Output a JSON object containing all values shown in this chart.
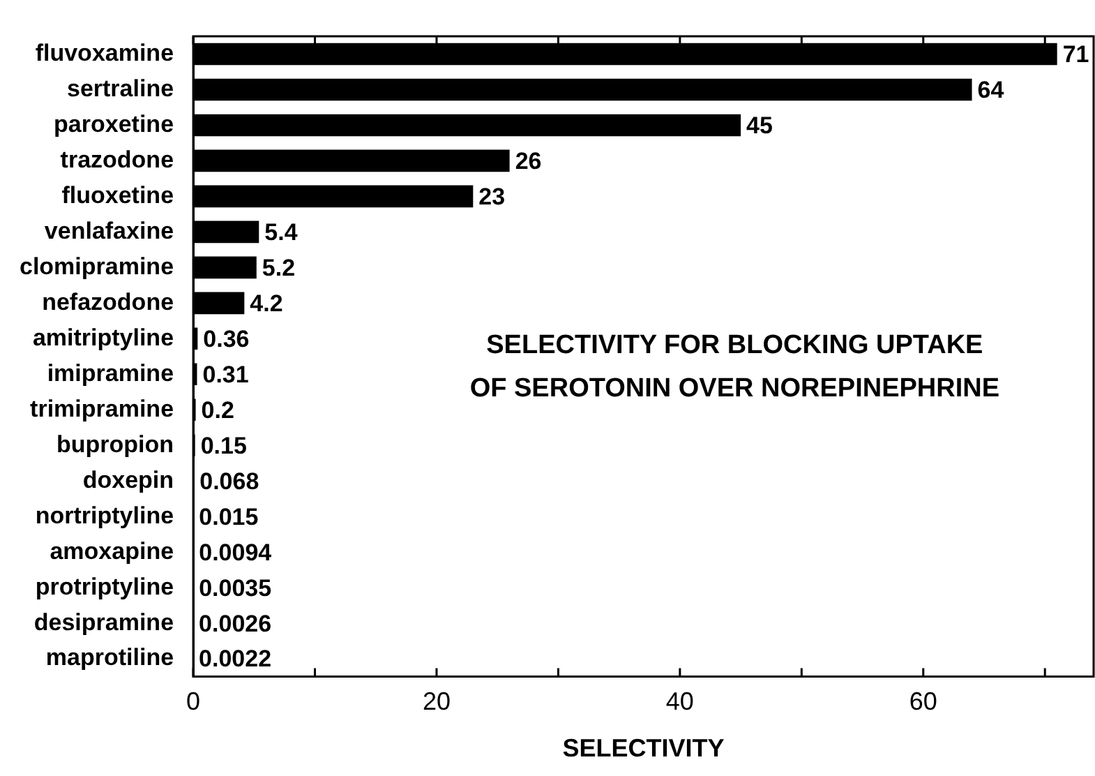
{
  "chart_data": {
    "type": "bar",
    "orientation": "horizontal",
    "title": "SELECTIVITY FOR BLOCKING UPTAKE\nOF SEROTONIN OVER NOREPINEPHRINE",
    "xlabel": "SELECTIVITY",
    "categories": [
      "fluvoxamine",
      "sertraline",
      "paroxetine",
      "trazodone",
      "fluoxetine",
      "venlafaxine",
      "clomipramine",
      "nefazodone",
      "amitriptyline",
      "imipramine",
      "trimipramine",
      "bupropion",
      "doxepin",
      "nortriptyline",
      "amoxapine",
      "protriptyline",
      "desipramine",
      "maprotiline"
    ],
    "values": [
      71,
      64,
      45,
      26,
      23,
      5.4,
      5.2,
      4.2,
      0.36,
      0.31,
      0.2,
      0.15,
      0.068,
      0.015,
      0.0094,
      0.0035,
      0.0026,
      0.0022
    ],
    "color": "#000000",
    "data_labels": true,
    "grid": false,
    "legend": false,
    "xlim": [
      0,
      74
    ],
    "xticks": [
      0,
      {
        "value": 10,
        "label": null
      },
      20,
      {
        "value": 30,
        "label": null
      },
      40,
      {
        "value": 50,
        "label": null
      },
      60,
      {
        "value": 70,
        "label": null
      }
    ]
  }
}
